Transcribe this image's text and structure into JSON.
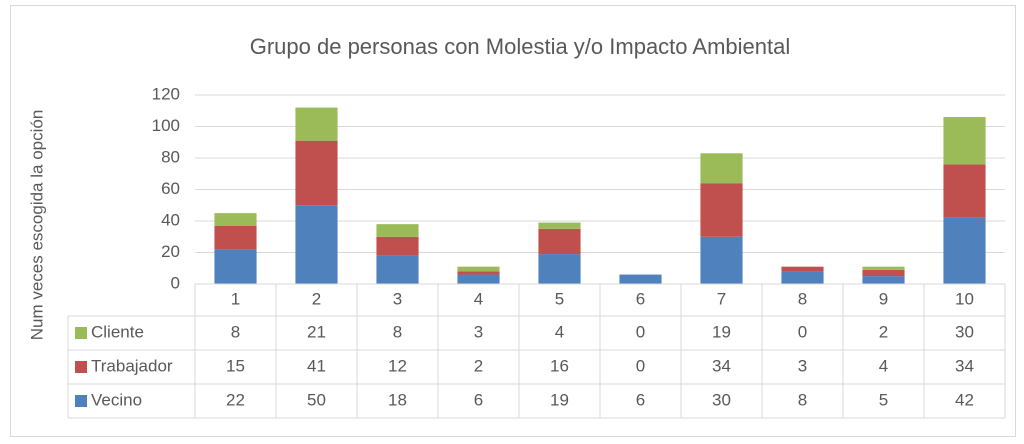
{
  "chart_data": {
    "type": "bar",
    "stacked": true,
    "title": "Grupo de personas con Molestia y/o Impacto Ambiental",
    "y_label": "Num veces escogida la opción",
    "categories": [
      "1",
      "2",
      "3",
      "4",
      "5",
      "6",
      "7",
      "8",
      "9",
      "10"
    ],
    "series": [
      {
        "name": "Vecino",
        "color": "#4f81bd",
        "values": [
          22,
          50,
          18,
          6,
          19,
          6,
          30,
          8,
          5,
          42
        ]
      },
      {
        "name": "Trabajador",
        "color": "#c0504d",
        "values": [
          15,
          41,
          12,
          2,
          16,
          0,
          34,
          3,
          4,
          34
        ]
      },
      {
        "name": "Cliente",
        "color": "#9bbb59",
        "values": [
          8,
          21,
          8,
          3,
          4,
          0,
          19,
          0,
          2,
          30
        ]
      }
    ],
    "ylim": [
      0,
      120
    ],
    "yticks": [
      0,
      20,
      40,
      60,
      80,
      100,
      120
    ],
    "grid": true,
    "data_table": true
  }
}
